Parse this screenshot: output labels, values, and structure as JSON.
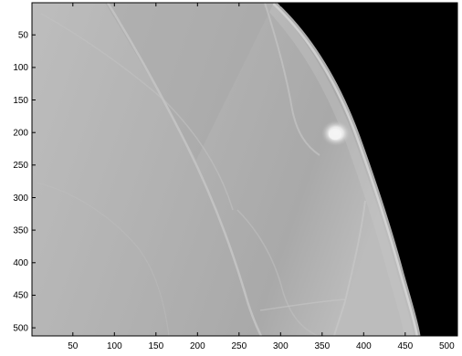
{
  "image": {
    "description_free": true,
    "x_range": [
      1,
      512
    ],
    "y_range": [
      1,
      512
    ],
    "x_ticks": [
      "50",
      "100",
      "150",
      "200",
      "250",
      "300",
      "350",
      "400",
      "450",
      "500"
    ],
    "y_ticks": [
      "50",
      "100",
      "150",
      "200",
      "250",
      "300",
      "350",
      "400",
      "450",
      "500"
    ],
    "colormap": "gray",
    "background_color": "#000000",
    "frame_color": "#000000"
  }
}
